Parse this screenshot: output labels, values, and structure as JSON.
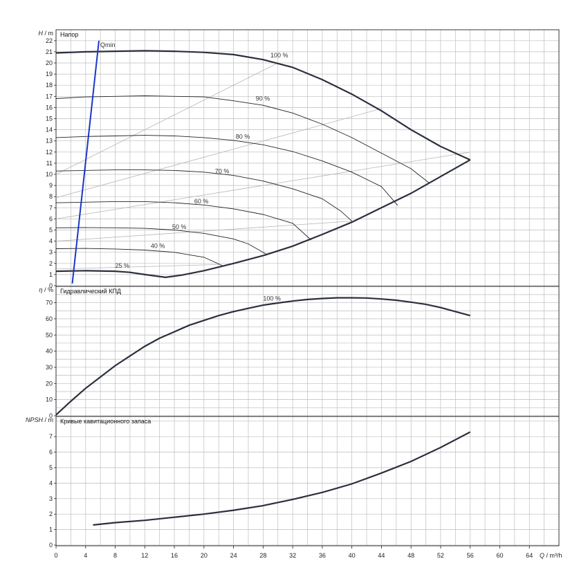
{
  "chart_data": {
    "type": "line",
    "x_axis": {
      "label_var": "Q",
      "label_unit": "/ m³/h",
      "range": [
        0,
        68
      ],
      "ticks": [
        0,
        4,
        8,
        12,
        16,
        20,
        24,
        28,
        32,
        36,
        40,
        44,
        48,
        52,
        56,
        60,
        64
      ]
    },
    "panels": [
      {
        "id": "head",
        "title": "Напор",
        "y_var": "H",
        "y_unit": "/ m",
        "y_range": [
          0,
          23
        ],
        "y_ticks": [
          0,
          1,
          2,
          3,
          4,
          5,
          6,
          7,
          8,
          9,
          10,
          11,
          12,
          13,
          14,
          15,
          16,
          17,
          18,
          19,
          20,
          21,
          22
        ],
        "qmin": {
          "label": "Qmin",
          "points": [
            [
              2.2,
              0.2
            ],
            [
              5.8,
              22.0
            ]
          ],
          "color": "#1a35c8"
        },
        "speed_curves": [
          {
            "label": "100 %",
            "label_at": [
              29,
              20.5
            ],
            "points": [
              [
                0,
                20.9
              ],
              [
                4,
                21.0
              ],
              [
                8,
                21.05
              ],
              [
                12,
                21.1
              ],
              [
                16,
                21.05
              ],
              [
                20,
                20.95
              ],
              [
                24,
                20.75
              ],
              [
                28,
                20.3
              ],
              [
                32,
                19.6
              ],
              [
                36,
                18.5
              ],
              [
                40,
                17.2
              ],
              [
                44,
                15.7
              ],
              [
                48,
                14.0
              ],
              [
                52,
                12.5
              ],
              [
                56,
                11.3
              ]
            ]
          },
          {
            "label": "90 %",
            "label_at": [
              27,
              16.6
            ],
            "points": [
              [
                0,
                16.8
              ],
              [
                4,
                16.95
              ],
              [
                8,
                17.0
              ],
              [
                12,
                17.05
              ],
              [
                16,
                17.0
              ],
              [
                20,
                16.95
              ],
              [
                24,
                16.6
              ],
              [
                28,
                16.2
              ],
              [
                32,
                15.5
              ],
              [
                36,
                14.5
              ],
              [
                40,
                13.3
              ],
              [
                44,
                11.9
              ],
              [
                48,
                10.5
              ],
              [
                50.5,
                9.2
              ]
            ]
          },
          {
            "label": "90 %",
            "label_at": [
              0,
              0
            ],
            "hidden": true,
            "points": []
          },
          {
            "label": "80 %",
            "label_at": [
              24.3,
              13.2
            ],
            "points": [
              [
                0,
                13.3
              ],
              [
                4,
                13.4
              ],
              [
                8,
                13.45
              ],
              [
                12,
                13.5
              ],
              [
                16,
                13.45
              ],
              [
                20,
                13.3
              ],
              [
                24,
                13.05
              ],
              [
                28,
                12.65
              ],
              [
                32,
                12.05
              ],
              [
                36,
                11.2
              ],
              [
                40,
                10.2
              ],
              [
                44,
                8.9
              ],
              [
                46.2,
                7.2
              ]
            ]
          },
          {
            "label": "70 %",
            "label_at": [
              21.5,
              10.1
            ],
            "points": [
              [
                0,
                10.3
              ],
              [
                4,
                10.35
              ],
              [
                8,
                10.4
              ],
              [
                12,
                10.4
              ],
              [
                16,
                10.35
              ],
              [
                20,
                10.2
              ],
              [
                24,
                9.9
              ],
              [
                28,
                9.4
              ],
              [
                32,
                8.7
              ],
              [
                36,
                7.8
              ],
              [
                38.5,
                6.7
              ],
              [
                40,
                5.8
              ]
            ]
          },
          {
            "label": "60 %",
            "label_at": [
              18.7,
              7.4
            ],
            "points": [
              [
                0,
                7.45
              ],
              [
                4,
                7.5
              ],
              [
                8,
                7.55
              ],
              [
                12,
                7.55
              ],
              [
                16,
                7.45
              ],
              [
                20,
                7.25
              ],
              [
                24,
                6.9
              ],
              [
                28,
                6.4
              ],
              [
                32,
                5.6
              ],
              [
                34.5,
                4.1
              ]
            ]
          },
          {
            "label": "50 %",
            "label_at": [
              15.7,
              5.1
            ],
            "points": [
              [
                0,
                5.2
              ],
              [
                4,
                5.22
              ],
              [
                8,
                5.2
              ],
              [
                12,
                5.15
              ],
              [
                16,
                5.0
              ],
              [
                20,
                4.7
              ],
              [
                24,
                4.2
              ],
              [
                26,
                3.75
              ],
              [
                28.5,
                2.8
              ]
            ]
          },
          {
            "label": "40 %",
            "label_at": [
              12.8,
              3.4
            ],
            "points": [
              [
                0,
                3.32
              ],
              [
                4,
                3.35
              ],
              [
                8,
                3.3
              ],
              [
                12,
                3.2
              ],
              [
                16,
                3.0
              ],
              [
                20,
                2.55
              ],
              [
                22.5,
                1.8
              ]
            ]
          },
          {
            "label": "25 %",
            "label_at": [
              8,
              1.6
            ],
            "points": [
              [
                0,
                1.3
              ],
              [
                4,
                1.35
              ],
              [
                8,
                1.3
              ],
              [
                10,
                1.2
              ],
              [
                12,
                1.0
              ],
              [
                14.8,
                0.75
              ],
              [
                17,
                0.95
              ],
              [
                20,
                1.35
              ],
              [
                24,
                2.0
              ],
              [
                28,
                2.7
              ],
              [
                32,
                3.55
              ],
              [
                36,
                4.6
              ],
              [
                40,
                5.7
              ],
              [
                44,
                7.0
              ],
              [
                48,
                8.3
              ],
              [
                52,
                9.8
              ],
              [
                56,
                11.3
              ]
            ]
          }
        ],
        "efficiency_lines": [
          {
            "points": [
              [
                0,
                10.0
              ],
              [
                30,
                20.0
              ]
            ]
          },
          {
            "points": [
              [
                0,
                7.9
              ],
              [
                44,
                15.9
              ]
            ]
          },
          {
            "points": [
              [
                0,
                6.0
              ],
              [
                56,
                12.0
              ]
            ]
          },
          {
            "points": [
              [
                0,
                4.0
              ],
              [
                40,
                5.8
              ]
            ]
          },
          {
            "points": [
              [
                0,
                1.5
              ],
              [
                22,
                1.9
              ]
            ]
          }
        ]
      },
      {
        "id": "eta",
        "title": "Гидравлический КПД",
        "y_var": "η",
        "y_unit": "/ %",
        "y_range": [
          0,
          78
        ],
        "y_ticks": [
          0,
          10,
          20,
          30,
          40,
          50,
          60,
          70
        ],
        "series": [
          {
            "label": "100 %",
            "label_at": [
              28,
              71.3
            ],
            "points": [
              [
                0,
                0.5
              ],
              [
                2,
                9
              ],
              [
                4,
                17
              ],
              [
                6,
                24
              ],
              [
                8,
                31
              ],
              [
                10,
                37
              ],
              [
                12,
                43
              ],
              [
                14,
                48
              ],
              [
                16,
                52
              ],
              [
                18,
                56
              ],
              [
                20,
                59
              ],
              [
                22,
                62
              ],
              [
                24,
                64.5
              ],
              [
                26,
                66.5
              ],
              [
                28,
                68.5
              ],
              [
                30,
                69.8
              ],
              [
                32,
                71
              ],
              [
                34,
                72
              ],
              [
                36,
                72.6
              ],
              [
                38,
                73
              ],
              [
                40,
                73
              ],
              [
                42,
                72.9
              ],
              [
                44,
                72.3
              ],
              [
                46,
                71.5
              ],
              [
                48,
                70.3
              ],
              [
                50,
                69
              ],
              [
                52,
                67
              ],
              [
                54,
                64.5
              ],
              [
                56,
                62
              ]
            ]
          }
        ]
      },
      {
        "id": "npsh",
        "title": "Кривые кавитационного запаса",
        "y_var": "NPSH",
        "y_unit": "/ m",
        "y_range": [
          0,
          8
        ],
        "y_ticks": [
          0,
          1,
          2,
          3,
          4,
          5,
          6,
          7
        ],
        "series": [
          {
            "label": "",
            "points": [
              [
                5,
                1.3
              ],
              [
                8,
                1.45
              ],
              [
                12,
                1.6
              ],
              [
                16,
                1.8
              ],
              [
                20,
                2.0
              ],
              [
                24,
                2.25
              ],
              [
                28,
                2.55
              ],
              [
                32,
                2.95
              ],
              [
                36,
                3.4
              ],
              [
                40,
                3.95
              ],
              [
                44,
                4.65
              ],
              [
                48,
                5.4
              ],
              [
                52,
                6.3
              ],
              [
                56,
                7.3
              ]
            ]
          }
        ]
      }
    ]
  }
}
